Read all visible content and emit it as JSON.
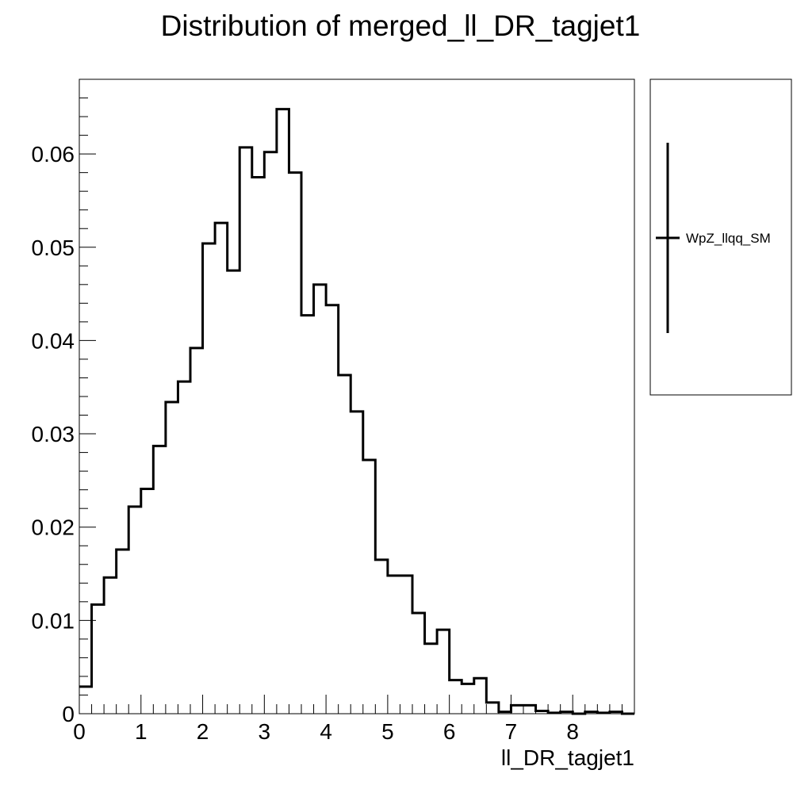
{
  "chart_data": {
    "type": "histogram",
    "title": "Distribution of merged_ll_DR_tagjet1",
    "xlabel": "ll_DR_tagjet1",
    "ylabel": "",
    "xlim": [
      0,
      9
    ],
    "ylim": [
      0,
      0.068
    ],
    "x_ticks": [
      0,
      1,
      2,
      3,
      4,
      5,
      6,
      7,
      8
    ],
    "x_tick_labels": [
      "0",
      "1",
      "2",
      "3",
      "4",
      "5",
      "6",
      "7",
      "8"
    ],
    "y_ticks": [
      0,
      0.01,
      0.02,
      0.03,
      0.04,
      0.05,
      0.06
    ],
    "y_tick_labels": [
      "0",
      "0.01",
      "0.02",
      "0.03",
      "0.04",
      "0.05",
      "0.06"
    ],
    "grid": false,
    "legend_position": "right",
    "bin_width": 0.2,
    "series": [
      {
        "name": "WpZ_llqq_SM",
        "color": "#000000",
        "bin_edges": [
          0,
          0.2,
          0.4,
          0.6,
          0.8,
          1.0,
          1.2,
          1.4,
          1.6,
          1.8,
          2.0,
          2.2,
          2.4,
          2.6,
          2.8,
          3.0,
          3.2,
          3.4,
          3.6,
          3.8,
          4.0,
          4.2,
          4.4,
          4.6,
          4.8,
          5.0,
          5.2,
          5.4,
          5.6,
          5.8,
          6.0,
          6.2,
          6.4,
          6.6,
          6.8,
          7.0,
          7.2,
          7.4,
          7.6,
          7.8,
          8.0,
          8.2,
          8.4,
          8.6,
          8.8,
          9.0
        ],
        "values": [
          0.0029,
          0.0117,
          0.0146,
          0.0176,
          0.0222,
          0.0241,
          0.0287,
          0.0334,
          0.0356,
          0.0392,
          0.0504,
          0.0526,
          0.0475,
          0.0607,
          0.0575,
          0.0602,
          0.0648,
          0.058,
          0.0427,
          0.046,
          0.0438,
          0.0363,
          0.0324,
          0.0272,
          0.0165,
          0.0148,
          0.0148,
          0.0108,
          0.0075,
          0.009,
          0.0036,
          0.0032,
          0.0038,
          0.0012,
          0.0002,
          0.0009,
          0.0009,
          0.0003,
          0.0001,
          0.0002,
          0.0,
          0.0002,
          0.0001,
          0.0002,
          0.0
        ]
      }
    ]
  }
}
